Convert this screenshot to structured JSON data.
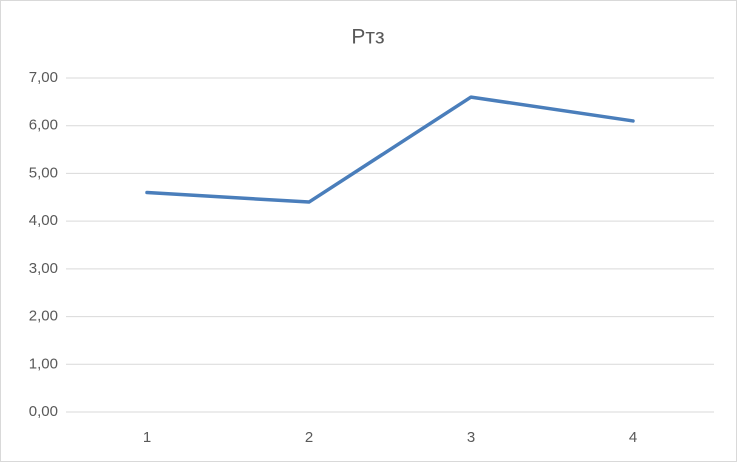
{
  "chart_data": {
    "type": "line",
    "title": "Pтз",
    "categories": [
      "1",
      "2",
      "3",
      "4"
    ],
    "series": [
      {
        "color": "#4a7ebb",
        "values": [
          4.6,
          4.4,
          6.6,
          6.1
        ]
      }
    ],
    "ylim": [
      0,
      7
    ],
    "yticks": [
      {
        "value": 0,
        "label": "0,00"
      },
      {
        "value": 1,
        "label": "1,00"
      },
      {
        "value": 2,
        "label": "2,00"
      },
      {
        "value": 3,
        "label": "3,00"
      },
      {
        "value": 4,
        "label": "4,00"
      },
      {
        "value": 5,
        "label": "5,00"
      },
      {
        "value": 6,
        "label": "6,00"
      },
      {
        "value": 7,
        "label": "7,00"
      }
    ],
    "grid": true
  }
}
